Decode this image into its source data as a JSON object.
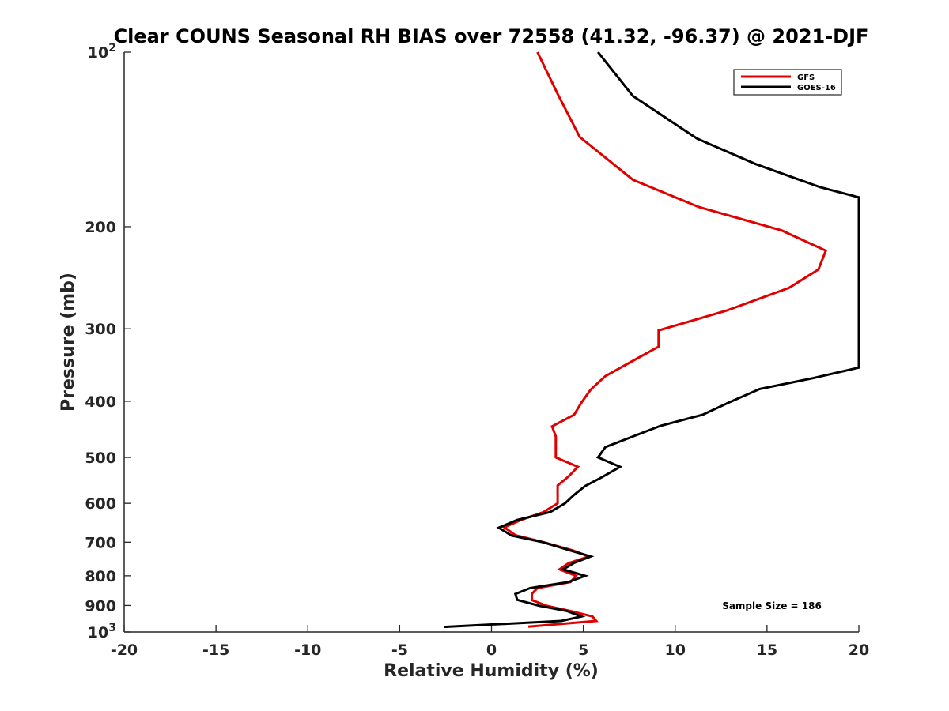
{
  "chart_data": {
    "type": "line",
    "title": "Clear COUNS Seasonal RH BIAS over 72558 (41.32, -96.37) @ 2021-DJF",
    "xlabel": "Relative Humidity (%)",
    "ylabel": "Pressure (mb)",
    "xlim": [
      -20,
      20
    ],
    "ylim": [
      100,
      1000
    ],
    "y_scale": "log",
    "y_reversed": true,
    "x_ticks": [
      -20,
      -15,
      -10,
      -5,
      0,
      5,
      10,
      15,
      20
    ],
    "x_tick_labels": [
      "-20",
      "-15",
      "-10",
      "-5",
      "0",
      "5",
      "10",
      "15",
      "20"
    ],
    "y_ticks": [
      100,
      200,
      300,
      400,
      500,
      600,
      700,
      800,
      900,
      1000
    ],
    "y_tick_labels": [
      "10^2",
      "200",
      "300",
      "400",
      "500",
      "600",
      "700",
      "800",
      "900",
      "10^3"
    ],
    "grid": false,
    "legend_position": "top-right",
    "annotation": "Sample Size = 186",
    "series": [
      {
        "name": "GFS",
        "color": "#e00000",
        "points": [
          [
            2.5,
            100
          ],
          [
            3.6,
            118
          ],
          [
            4.8,
            140
          ],
          [
            7.7,
            166
          ],
          [
            11.3,
            185
          ],
          [
            15.8,
            203
          ],
          [
            18.2,
            220
          ],
          [
            17.8,
            237
          ],
          [
            16.2,
            255
          ],
          [
            12.8,
            279
          ],
          [
            9.1,
            302
          ],
          [
            9.1,
            322
          ],
          [
            7.6,
            342
          ],
          [
            6.2,
            362
          ],
          [
            5.4,
            382
          ],
          [
            4.9,
            402
          ],
          [
            4.5,
            422
          ],
          [
            3.3,
            442
          ],
          [
            3.5,
            460
          ],
          [
            3.5,
            480
          ],
          [
            3.5,
            500
          ],
          [
            4.7,
            519
          ],
          [
            4.2,
            539
          ],
          [
            3.6,
            559
          ],
          [
            3.6,
            581
          ],
          [
            3.6,
            600
          ],
          [
            2.8,
            622
          ],
          [
            1.6,
            641
          ],
          [
            0.7,
            660
          ],
          [
            1.3,
            681
          ],
          [
            2.9,
            701
          ],
          [
            4.4,
            723
          ],
          [
            5.3,
            741
          ],
          [
            4.2,
            761
          ],
          [
            3.7,
            780
          ],
          [
            4.6,
            800
          ],
          [
            4.3,
            820
          ],
          [
            2.5,
            840
          ],
          [
            2.2,
            859
          ],
          [
            2.2,
            881
          ],
          [
            3.0,
            901
          ],
          [
            4.3,
            920
          ],
          [
            5.5,
            940
          ],
          [
            5.7,
            957
          ],
          [
            2.0,
            979
          ]
        ]
      },
      {
        "name": "GOES-16",
        "color": "#000000",
        "points": [
          [
            5.8,
            100
          ],
          [
            7.7,
            119
          ],
          [
            11.2,
            141
          ],
          [
            14.4,
            156
          ],
          [
            17.9,
            171
          ],
          [
            20.0,
            178
          ],
          [
            20.0,
            350
          ],
          [
            17.5,
            365
          ],
          [
            14.6,
            381
          ],
          [
            13.0,
            401
          ],
          [
            11.5,
            422
          ],
          [
            9.2,
            441
          ],
          [
            7.7,
            460
          ],
          [
            6.2,
            480
          ],
          [
            5.8,
            500
          ],
          [
            7.0,
            519
          ],
          [
            6.0,
            541
          ],
          [
            5.1,
            560
          ],
          [
            4.5,
            580
          ],
          [
            4.0,
            600
          ],
          [
            3.2,
            621
          ],
          [
            1.4,
            641
          ],
          [
            0.4,
            661
          ],
          [
            1.1,
            682
          ],
          [
            2.8,
            700
          ],
          [
            4.2,
            722
          ],
          [
            5.4,
            741
          ],
          [
            4.5,
            760
          ],
          [
            3.9,
            780
          ],
          [
            5.1,
            800
          ],
          [
            4.2,
            820
          ],
          [
            2.1,
            840
          ],
          [
            1.3,
            860
          ],
          [
            1.4,
            880
          ],
          [
            2.6,
            901
          ],
          [
            4.1,
            920
          ],
          [
            4.9,
            940
          ],
          [
            3.8,
            957
          ],
          [
            -2.6,
            980
          ]
        ]
      }
    ]
  }
}
